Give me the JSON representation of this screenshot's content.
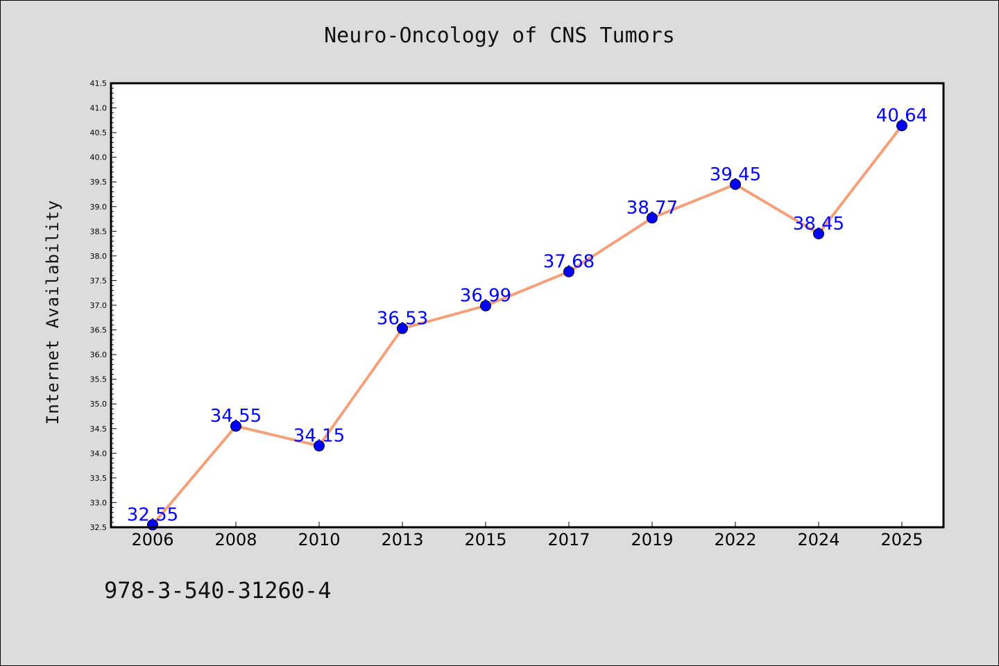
{
  "title": "Neuro-Oncology of CNS Tumors",
  "footnote": "978-3-540-31260-4",
  "colors": {
    "background": "#dcdcdc",
    "plot_background": "#ffffff",
    "line": "#f4a07a",
    "marker": "#0000ff",
    "data_label": "#0000ff"
  },
  "chart_data": {
    "type": "line",
    "categories": [
      "2006",
      "2008",
      "2010",
      "2013",
      "2015",
      "2017",
      "2019",
      "2022",
      "2024",
      "2025"
    ],
    "values": [
      32.55,
      34.55,
      34.15,
      36.53,
      36.99,
      37.68,
      38.77,
      39.45,
      38.45,
      40.64
    ],
    "data_labels": [
      "32.55",
      "34.55",
      "34.15",
      "36.53",
      "36.99",
      "37.68",
      "38.77",
      "39.45",
      "38.45",
      "40.64"
    ],
    "ylabel": "Internet Availability",
    "ylim": [
      32.5,
      41.5
    ],
    "yticks": [
      "32.5",
      "33.0",
      "33.5",
      "34.0",
      "34.5",
      "35.0",
      "35.5",
      "36.0",
      "36.5",
      "37.0",
      "37.5",
      "38.0",
      "38.5",
      "39.0",
      "39.5",
      "40.0",
      "40.5",
      "41.0",
      "41.5"
    ],
    "grid": false,
    "legend": "none"
  }
}
